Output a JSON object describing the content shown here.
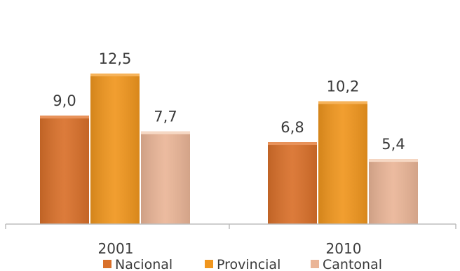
{
  "chart_data": {
    "type": "bar",
    "categories": [
      "2001",
      "2010"
    ],
    "series": [
      {
        "name": "Nacional",
        "values": [
          9.0,
          6.8
        ],
        "labels": [
          "9,0",
          "6,8"
        ],
        "color": "#d9702a",
        "top_color": "#e8925a"
      },
      {
        "name": "Provincial",
        "values": [
          12.5,
          10.2
        ],
        "labels": [
          "12,5",
          "10,2"
        ],
        "color": "#f0961e",
        "top_color": "#f6b35a"
      },
      {
        "name": "Cantonal",
        "values": [
          7.7,
          5.4
        ],
        "labels": [
          "7,7",
          "5,4"
        ],
        "color": "#eab597",
        "top_color": "#f6d8c4"
      }
    ],
    "title": "",
    "xlabel": "",
    "ylabel": "",
    "ylim": [
      0,
      14
    ],
    "grid": false,
    "legend": "bottom"
  }
}
